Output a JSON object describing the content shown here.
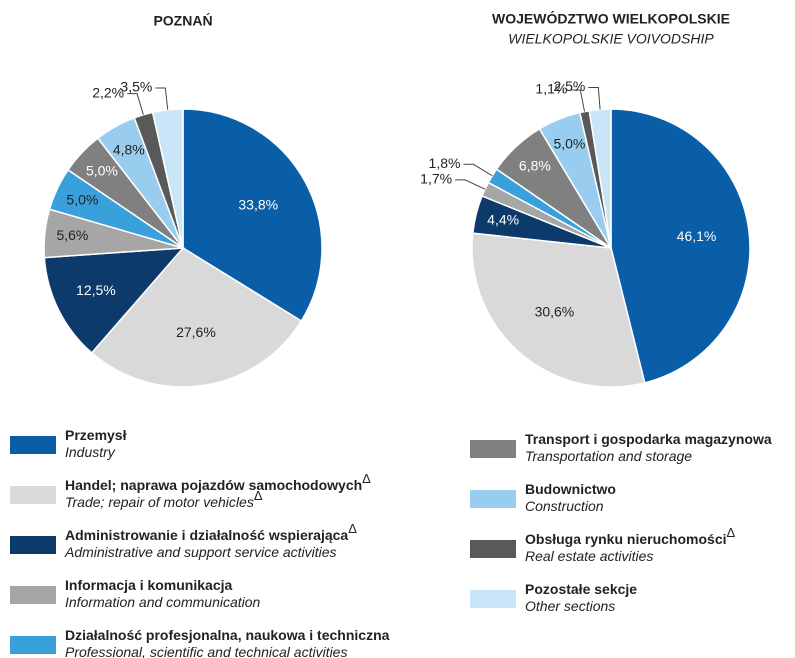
{
  "legend": [
    {
      "name": "Przemysł",
      "name_en": "Industry",
      "color": "#0a5ea8"
    },
    {
      "name": "Handel; naprawa pojazdów samochodowych",
      "note": "Δ",
      "name_en": "Trade; repair of motor vehicles",
      "note_en": "Δ",
      "color": "#d9d9d9"
    },
    {
      "name": "Administrowanie i działalność wspierająca",
      "note": "Δ",
      "name_en": "Administrative and support service activities",
      "color": "#0b3a6b"
    },
    {
      "name": "Informacja i komunikacja",
      "name_en": "Information and communication",
      "color": "#a6a6a6"
    },
    {
      "name": "Działalność profesjonalna, naukowa i techniczna",
      "name_en": "Professional, scientific and technical activities",
      "color": "#3aa0dc"
    },
    {
      "name": "Transport i gospodarka magazynowa",
      "name_en": "Transportation and storage",
      "color": "#808080"
    },
    {
      "name": "Budownictwo",
      "name_en": "Construction",
      "color": "#99cdf0"
    },
    {
      "name": "Obsługa rynku nieruchomości",
      "note": "Δ",
      "name_en": "Real estate activities",
      "color": "#595959"
    },
    {
      "name": "Pozostałe sekcje",
      "name_en": "Other sections",
      "color": "#c9e6f8"
    }
  ],
  "chart_data": [
    {
      "type": "pie",
      "title": "POZNAŃ",
      "values": [
        33.8,
        27.6,
        12.5,
        5.6,
        5.0,
        5.0,
        4.8,
        2.2,
        3.5
      ],
      "value_labels": [
        "33,8%",
        "27,6%",
        "12,5%",
        "5,6%",
        "5,0%",
        "5,0%",
        "4,8%",
        "2,2%",
        "3,5%"
      ]
    },
    {
      "type": "pie",
      "title": "WOJEWÓDZTWO WIELKOPOLSKIE",
      "subtitle": "WIELKOPOLSKIE VOIVODSHIP",
      "values": [
        46.1,
        30.6,
        4.4,
        1.7,
        1.8,
        6.8,
        5.0,
        1.1,
        2.5
      ],
      "value_labels": [
        "46,1%",
        "30,6%",
        "4,4%",
        "1,7%",
        "1,8%",
        "6,8%",
        "5,0%",
        "1,1%",
        "2,5%"
      ]
    }
  ]
}
